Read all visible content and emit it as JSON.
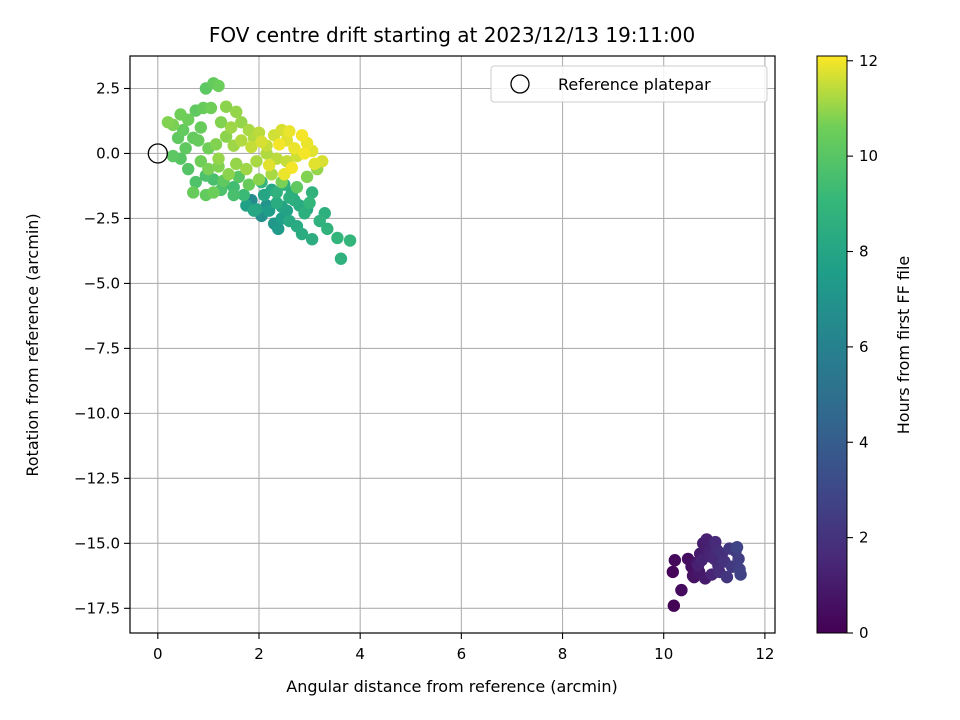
{
  "chart_data": {
    "type": "scatter",
    "title": "FOV centre drift starting at 2023/12/13 19:11:00",
    "xlabel": "Angular distance from reference (arcmin)",
    "ylabel": "Rotation from reference (arcmin)",
    "xlim": [
      -0.55,
      12.2
    ],
    "ylim": [
      -18.45,
      3.75
    ],
    "xticks": [
      0,
      2,
      4,
      6,
      8,
      10,
      12
    ],
    "yticks": [
      2.5,
      0.0,
      -2.5,
      -5.0,
      -7.5,
      -10.0,
      -12.5,
      -15.0,
      -17.5
    ],
    "xtick_labels": [
      "0",
      "2",
      "4",
      "6",
      "8",
      "10",
      "12"
    ],
    "ytick_labels": [
      "2.5",
      "0.0",
      "−2.5",
      "−5.0",
      "−7.5",
      "−10.0",
      "−12.5",
      "−15.0",
      "−17.5"
    ],
    "grid": true,
    "legend": {
      "placement": "top-right",
      "entries": [
        "Reference platepar"
      ]
    },
    "reference_point": {
      "x": 0.0,
      "y": 0.0
    },
    "colorbar": {
      "label": "Hours from first FF file",
      "range": [
        0,
        12.1
      ],
      "ticks": [
        0,
        2,
        4,
        6,
        8,
        10,
        12
      ],
      "tick_labels": [
        "0",
        "2",
        "4",
        "6",
        "8",
        "10",
        "12"
      ],
      "colormap": "viridis"
    },
    "series": [
      {
        "points": [
          [
            10.2,
            -17.4,
            0.1
          ],
          [
            10.18,
            -16.1,
            0.2
          ],
          [
            10.22,
            -15.65,
            0.3
          ],
          [
            10.35,
            -16.8,
            0.4
          ],
          [
            10.48,
            -15.6,
            0.5
          ],
          [
            10.55,
            -15.9,
            0.6
          ],
          [
            10.6,
            -16.3,
            0.7
          ],
          [
            10.65,
            -15.75,
            0.8
          ],
          [
            10.7,
            -16.1,
            0.9
          ],
          [
            10.72,
            -15.4,
            1.0
          ],
          [
            10.78,
            -15.0,
            1.1
          ],
          [
            10.85,
            -14.85,
            1.2
          ],
          [
            10.9,
            -15.3,
            1.3
          ],
          [
            10.95,
            -16.2,
            1.4
          ],
          [
            11.0,
            -15.6,
            1.5
          ],
          [
            11.02,
            -14.95,
            1.6
          ],
          [
            11.08,
            -15.85,
            1.7
          ],
          [
            11.1,
            -16.1,
            1.8
          ],
          [
            11.15,
            -15.4,
            1.9
          ],
          [
            11.2,
            -15.7,
            2.0
          ],
          [
            11.25,
            -16.3,
            2.1
          ],
          [
            11.3,
            -15.2,
            2.2
          ],
          [
            11.35,
            -15.9,
            2.3
          ],
          [
            11.42,
            -15.3,
            2.4
          ],
          [
            11.48,
            -15.6,
            2.5
          ],
          [
            11.5,
            -16.0,
            2.6
          ],
          [
            11.52,
            -16.2,
            2.7
          ],
          [
            11.45,
            -15.15,
            2.8
          ],
          [
            10.58,
            -16.25,
            0.6
          ],
          [
            10.82,
            -16.35,
            1.0
          ],
          [
            10.68,
            -15.85,
            1.2
          ],
          [
            10.92,
            -15.5,
            1.4
          ],
          [
            11.05,
            -15.25,
            1.7
          ],
          [
            10.75,
            -15.65,
            1.3
          ],
          [
            1.85,
            -1.8,
            6.5
          ],
          [
            2.05,
            -2.4,
            6.8
          ],
          [
            2.15,
            -2.0,
            7.0
          ],
          [
            2.3,
            -2.7,
            7.2
          ],
          [
            2.38,
            -2.9,
            7.4
          ],
          [
            2.45,
            -2.5,
            7.6
          ],
          [
            2.55,
            -2.2,
            7.8
          ],
          [
            2.1,
            -1.6,
            8.0
          ],
          [
            2.25,
            -1.4,
            8.1
          ],
          [
            2.6,
            -2.6,
            8.2
          ],
          [
            2.75,
            -2.8,
            8.3
          ],
          [
            2.85,
            -3.1,
            8.4
          ],
          [
            3.05,
            -3.3,
            8.5
          ],
          [
            2.9,
            -2.3,
            8.6
          ],
          [
            3.2,
            -2.6,
            8.7
          ],
          [
            3.35,
            -2.9,
            8.8
          ],
          [
            3.55,
            -3.25,
            8.9
          ],
          [
            3.62,
            -4.05,
            8.7
          ],
          [
            3.8,
            -3.35,
            8.9
          ],
          [
            3.0,
            -1.9,
            9.0
          ],
          [
            3.05,
            -1.5,
            8.8
          ],
          [
            2.7,
            -1.8,
            8.5
          ],
          [
            2.5,
            -1.2,
            8.6
          ],
          [
            2.35,
            -1.9,
            8.4
          ],
          [
            2.05,
            -1.1,
            8.9
          ],
          [
            2.8,
            -2.0,
            8.3
          ],
          [
            2.65,
            -1.5,
            8.5
          ],
          [
            2.95,
            -2.15,
            8.2
          ],
          [
            1.95,
            -2.15,
            8.0
          ],
          [
            3.3,
            -2.3,
            8.6
          ],
          [
            1.7,
            -1.6,
            9.2
          ],
          [
            1.5,
            -1.3,
            9.4
          ],
          [
            1.3,
            -1.2,
            9.5
          ],
          [
            1.1,
            -1.0,
            9.6
          ],
          [
            0.95,
            -0.85,
            9.7
          ],
          [
            0.75,
            -1.1,
            9.8
          ],
          [
            0.6,
            -0.6,
            9.9
          ],
          [
            0.45,
            -0.2,
            10.0
          ],
          [
            0.3,
            -0.1,
            10.1
          ],
          [
            0.55,
            0.2,
            10.2
          ],
          [
            0.7,
            0.6,
            10.3
          ],
          [
            0.85,
            1.0,
            10.4
          ],
          [
            0.6,
            1.3,
            10.5
          ],
          [
            0.45,
            1.5,
            10.6
          ],
          [
            0.3,
            1.1,
            10.7
          ],
          [
            0.2,
            1.2,
            10.8
          ],
          [
            0.75,
            1.65,
            10.2
          ],
          [
            0.9,
            1.75,
            10.4
          ],
          [
            1.05,
            1.75,
            10.6
          ],
          [
            0.95,
            2.5,
            10.1
          ],
          [
            1.1,
            2.7,
            10.3
          ],
          [
            1.2,
            2.6,
            10.5
          ],
          [
            1.35,
            1.8,
            10.9
          ],
          [
            1.55,
            1.6,
            11.0
          ],
          [
            1.25,
            1.2,
            10.8
          ],
          [
            1.45,
            1.0,
            11.1
          ],
          [
            1.65,
            1.2,
            11.0
          ],
          [
            1.8,
            0.9,
            11.2
          ],
          [
            1.9,
            0.6,
            11.3
          ],
          [
            2.0,
            0.8,
            11.4
          ],
          [
            2.15,
            0.3,
            11.5
          ],
          [
            2.3,
            0.7,
            11.6
          ],
          [
            2.45,
            0.9,
            11.7
          ],
          [
            2.55,
            0.5,
            11.8
          ],
          [
            2.7,
            0.2,
            11.9
          ],
          [
            2.85,
            0.7,
            12.0
          ],
          [
            2.95,
            0.4,
            11.9
          ],
          [
            3.05,
            0.1,
            11.8
          ],
          [
            3.25,
            -0.3,
            11.7
          ],
          [
            2.75,
            -0.1,
            11.6
          ],
          [
            2.55,
            -0.3,
            11.5
          ],
          [
            2.35,
            -0.2,
            11.4
          ],
          [
            2.15,
            0.0,
            11.3
          ],
          [
            1.95,
            -0.3,
            11.2
          ],
          [
            1.75,
            -0.6,
            11.1
          ],
          [
            1.55,
            -0.4,
            11.0
          ],
          [
            1.4,
            -0.8,
            10.9
          ],
          [
            1.2,
            -0.5,
            10.8
          ],
          [
            1.0,
            -0.6,
            10.7
          ],
          [
            0.85,
            -0.3,
            10.6
          ],
          [
            0.7,
            -1.5,
            10.4
          ],
          [
            0.95,
            -1.6,
            10.3
          ],
          [
            1.1,
            -1.5,
            10.5
          ],
          [
            1.3,
            -1.05,
            10.2
          ],
          [
            1.6,
            -0.9,
            10.0
          ],
          [
            1.5,
            -1.6,
            9.6
          ],
          [
            1.25,
            -1.4,
            9.7
          ],
          [
            2.5,
            -0.8,
            11.9
          ],
          [
            2.65,
            -0.55,
            12.0
          ],
          [
            2.2,
            -0.45,
            11.8
          ],
          [
            2.4,
            0.35,
            12.0
          ],
          [
            2.6,
            0.85,
            11.9
          ],
          [
            2.05,
            0.45,
            11.7
          ],
          [
            1.85,
            0.25,
            11.5
          ],
          [
            2.9,
            0.0,
            12.0
          ],
          [
            3.1,
            -0.4,
            11.8
          ],
          [
            1.65,
            0.5,
            11.3
          ],
          [
            1.5,
            0.3,
            11.1
          ],
          [
            1.35,
            0.65,
            10.9
          ],
          [
            1.15,
            0.35,
            10.8
          ],
          [
            1.0,
            0.2,
            10.6
          ],
          [
            0.8,
            0.5,
            10.4
          ],
          [
            0.5,
            0.9,
            10.3
          ],
          [
            0.4,
            0.6,
            10.2
          ],
          [
            1.2,
            -0.2,
            11.0
          ],
          [
            2.25,
            -0.8,
            11.2
          ],
          [
            2.0,
            -1.0,
            10.9
          ],
          [
            1.8,
            -1.2,
            10.4
          ],
          [
            2.45,
            -1.1,
            10.7
          ],
          [
            2.75,
            -1.3,
            10.2
          ],
          [
            2.95,
            -0.9,
            10.8
          ],
          [
            3.15,
            -0.6,
            11.0
          ],
          [
            1.9,
            -2.2,
            8.1
          ],
          [
            2.2,
            -2.2,
            7.5
          ],
          [
            2.45,
            -2.05,
            7.9
          ],
          [
            2.6,
            -1.7,
            8.6
          ],
          [
            2.35,
            -1.5,
            8.7
          ],
          [
            1.75,
            -2.0,
            7.7
          ]
        ]
      }
    ]
  }
}
